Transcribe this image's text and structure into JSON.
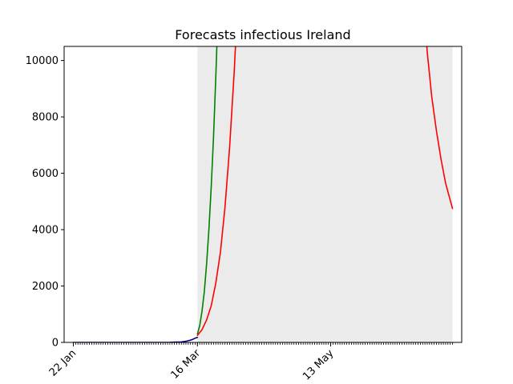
{
  "chart_data": {
    "type": "line",
    "title": "Forecasts infectious Ireland",
    "xlabel": "",
    "ylabel": "",
    "x_axis": {
      "kind": "date",
      "range": [
        "2020-01-18",
        "2020-07-09"
      ],
      "tick_labels": [
        {
          "date": "2020-01-22",
          "label": "22 Jan"
        },
        {
          "date": "2020-03-16",
          "label": "16 Mar"
        },
        {
          "date": "2020-05-13",
          "label": "13 May"
        }
      ],
      "minor_ticks": "daily"
    },
    "y_axis": {
      "range": [
        0,
        10500
      ],
      "ticks": [
        0,
        2000,
        4000,
        6000,
        8000,
        10000
      ]
    },
    "shaded_region": {
      "start": "2020-03-16",
      "end": "2020-07-05",
      "color": "#ebebeb"
    },
    "grid": false,
    "legend": "none",
    "series": [
      {
        "color": "#00008b",
        "points": [
          [
            "2020-01-22",
            0
          ],
          [
            "2020-02-15",
            0
          ],
          [
            "2020-02-29",
            1
          ],
          [
            "2020-03-04",
            2
          ],
          [
            "2020-03-07",
            10
          ],
          [
            "2020-03-09",
            18
          ],
          [
            "2020-03-11",
            40
          ],
          [
            "2020-03-12",
            60
          ],
          [
            "2020-03-13",
            80
          ],
          [
            "2020-03-14",
            110
          ],
          [
            "2020-03-15",
            150
          ],
          [
            "2020-03-16",
            180
          ]
        ]
      },
      {
        "color": "#008000",
        "points": [
          [
            "2020-03-16",
            300
          ],
          [
            "2020-03-17",
            600
          ],
          [
            "2020-03-18",
            1100
          ],
          [
            "2020-03-19",
            1800
          ],
          [
            "2020-03-20",
            2800
          ],
          [
            "2020-03-21",
            4000
          ],
          [
            "2020-03-22",
            5500
          ],
          [
            "2020-03-23",
            7300
          ],
          [
            "2020-03-24",
            9400
          ],
          [
            "2020-03-25",
            11800
          ]
        ]
      },
      {
        "color": "#ff0000",
        "points": [
          [
            "2020-03-16",
            250
          ],
          [
            "2020-03-18",
            450
          ],
          [
            "2020-03-20",
            800
          ],
          [
            "2020-03-22",
            1300
          ],
          [
            "2020-03-24",
            2100
          ],
          [
            "2020-03-26",
            3200
          ],
          [
            "2020-03-28",
            4800
          ],
          [
            "2020-03-30",
            6900
          ],
          [
            "2020-04-01",
            9600
          ],
          [
            "2020-04-02",
            11200
          ],
          [
            "2020-06-23",
            11500
          ],
          [
            "2020-06-24",
            10300
          ],
          [
            "2020-06-26",
            8700
          ],
          [
            "2020-06-28",
            7500
          ],
          [
            "2020-06-30",
            6500
          ],
          [
            "2020-07-02",
            5650
          ],
          [
            "2020-07-05",
            4750
          ]
        ]
      }
    ]
  }
}
